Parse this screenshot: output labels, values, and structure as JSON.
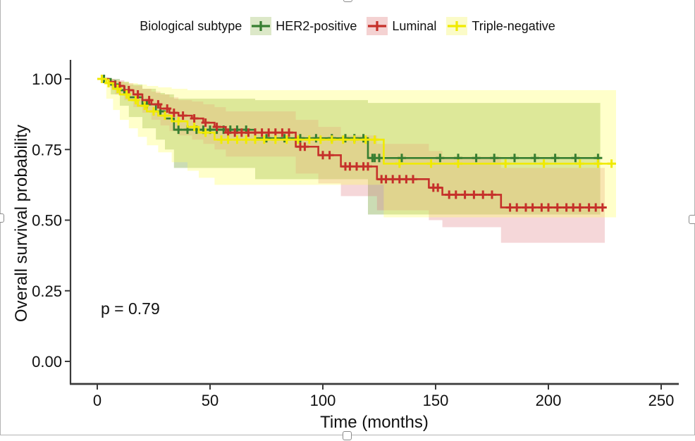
{
  "figure": {
    "p_value_label": "p = 0.79",
    "xlabel": "Time (months)",
    "ylabel": "Overall survival probability",
    "legend_title": "Biological subtype",
    "text_color": "#111111",
    "axis_color": "#3a3a3a"
  },
  "selection": {
    "border_color": "#b3b3b3",
    "handle_fill": "#ffffff",
    "handle_border": "#8a8a8a",
    "handles": [
      "top-center",
      "left-middle",
      "right-middle",
      "bottom-center"
    ]
  },
  "chart_data": {
    "type": "line",
    "subtype": "kaplan-meier-step-with-confidence-bands",
    "title": "",
    "xlabel": "Time (months)",
    "ylabel": "Overall survival probability",
    "xlim": [
      0,
      250
    ],
    "ylim": [
      0,
      1
    ],
    "x_ticks": [
      0,
      50,
      100,
      150,
      200,
      250
    ],
    "x_tick_labels": [
      "0",
      "50",
      "100",
      "150",
      "200",
      "250"
    ],
    "y_ticks": [
      0,
      0.25,
      0.5,
      0.75,
      1
    ],
    "y_tick_labels": [
      "0.00",
      "0.25",
      "0.50",
      "0.75",
      "1.00"
    ],
    "grid": false,
    "legend_position": "top",
    "legend_title": "Biological subtype",
    "annotation": "p = 0.79",
    "series": [
      {
        "name": "HER2-positive",
        "color": "#377e31",
        "band_fill": "#6a9a28",
        "band_opacity": 0.35,
        "key_bg": "#dce8c8",
        "end_time": 223,
        "steps": [
          [
            0,
            1.0
          ],
          [
            6,
            0.98
          ],
          [
            10,
            0.96
          ],
          [
            14,
            0.935
          ],
          [
            20,
            0.91
          ],
          [
            26,
            0.885
          ],
          [
            30,
            0.86
          ],
          [
            34,
            0.82
          ],
          [
            70,
            0.79
          ],
          [
            120,
            0.72
          ]
        ],
        "censor_times": [
          3,
          8,
          12,
          22,
          28,
          36,
          40,
          44,
          47,
          50,
          53,
          56,
          59,
          62,
          66,
          75,
          83,
          90,
          97,
          104,
          110,
          114,
          118,
          122,
          123,
          125,
          135,
          152,
          160,
          168,
          176,
          185,
          194,
          203,
          212,
          222
        ],
        "ci_upper": [
          [
            0,
            1.0
          ],
          [
            10,
            0.99
          ],
          [
            14,
            0.98
          ],
          [
            20,
            0.965
          ],
          [
            26,
            0.95
          ],
          [
            30,
            0.945
          ],
          [
            34,
            0.93
          ],
          [
            70,
            0.925
          ],
          [
            120,
            0.915
          ]
        ],
        "ci_lower": [
          [
            0,
            1.0
          ],
          [
            6,
            0.945
          ],
          [
            10,
            0.905
          ],
          [
            14,
            0.865
          ],
          [
            20,
            0.825
          ],
          [
            26,
            0.785
          ],
          [
            30,
            0.75
          ],
          [
            34,
            0.685
          ],
          [
            70,
            0.645
          ],
          [
            120,
            0.52
          ]
        ]
      },
      {
        "name": "Luminal",
        "color": "#c5302a",
        "band_fill": "#de7a80",
        "band_opacity": 0.3,
        "key_bg": "#f4d2d2",
        "end_time": 225,
        "steps": [
          [
            0,
            1.0
          ],
          [
            5,
            0.99
          ],
          [
            8,
            0.975
          ],
          [
            12,
            0.96
          ],
          [
            16,
            0.945
          ],
          [
            20,
            0.925
          ],
          [
            24,
            0.91
          ],
          [
            28,
            0.895
          ],
          [
            32,
            0.88
          ],
          [
            36,
            0.87
          ],
          [
            42,
            0.86
          ],
          [
            47,
            0.845
          ],
          [
            52,
            0.83
          ],
          [
            57,
            0.81
          ],
          [
            88,
            0.76
          ],
          [
            98,
            0.73
          ],
          [
            108,
            0.69
          ],
          [
            124,
            0.645
          ],
          [
            147,
            0.615
          ],
          [
            153,
            0.59
          ],
          [
            179,
            0.545
          ]
        ],
        "censor_times": [
          10,
          14,
          18,
          23,
          27,
          31,
          34,
          38,
          43,
          48,
          53,
          58,
          61,
          64,
          67,
          70,
          73,
          76,
          79,
          82,
          85,
          90,
          92,
          100,
          103,
          110,
          112,
          115,
          118,
          120,
          126,
          128,
          131,
          134,
          137,
          140,
          149,
          151,
          156,
          159,
          163,
          167,
          171,
          175,
          183,
          186,
          190,
          193,
          197,
          200,
          204,
          208,
          211,
          214,
          218,
          221,
          224
        ],
        "ci_upper": [
          [
            0,
            1.0
          ],
          [
            8,
            0.995
          ],
          [
            12,
            0.985
          ],
          [
            16,
            0.975
          ],
          [
            20,
            0.965
          ],
          [
            24,
            0.955
          ],
          [
            28,
            0.945
          ],
          [
            32,
            0.935
          ],
          [
            36,
            0.925
          ],
          [
            42,
            0.92
          ],
          [
            47,
            0.91
          ],
          [
            52,
            0.9
          ],
          [
            57,
            0.885
          ],
          [
            88,
            0.855
          ],
          [
            98,
            0.83
          ],
          [
            108,
            0.8
          ],
          [
            124,
            0.77
          ],
          [
            147,
            0.745
          ],
          [
            153,
            0.725
          ],
          [
            179,
            0.685
          ]
        ],
        "ci_lower": [
          [
            0,
            1.0
          ],
          [
            5,
            0.97
          ],
          [
            8,
            0.945
          ],
          [
            12,
            0.925
          ],
          [
            16,
            0.9
          ],
          [
            20,
            0.88
          ],
          [
            24,
            0.855
          ],
          [
            28,
            0.835
          ],
          [
            32,
            0.815
          ],
          [
            36,
            0.8
          ],
          [
            42,
            0.785
          ],
          [
            47,
            0.77
          ],
          [
            52,
            0.75
          ],
          [
            57,
            0.725
          ],
          [
            88,
            0.665
          ],
          [
            98,
            0.63
          ],
          [
            108,
            0.585
          ],
          [
            124,
            0.535
          ],
          [
            147,
            0.5
          ],
          [
            153,
            0.475
          ],
          [
            179,
            0.42
          ]
        ]
      },
      {
        "name": "Triple-negative",
        "color": "#f0ea00",
        "band_fill": "#ffff66",
        "band_opacity": 0.35,
        "key_bg": "#fbfbc8",
        "end_time": 230,
        "steps": [
          [
            0,
            1.0
          ],
          [
            4,
            0.985
          ],
          [
            7,
            0.965
          ],
          [
            10,
            0.945
          ],
          [
            14,
            0.925
          ],
          [
            18,
            0.905
          ],
          [
            22,
            0.885
          ],
          [
            27,
            0.87
          ],
          [
            33,
            0.85
          ],
          [
            40,
            0.83
          ],
          [
            45,
            0.81
          ],
          [
            52,
            0.785
          ],
          [
            127,
            0.7
          ]
        ],
        "censor_times": [
          2,
          5,
          9,
          13,
          17,
          21,
          25,
          30,
          36,
          43,
          48,
          55,
          58,
          62,
          66,
          70,
          74,
          79,
          84,
          89,
          94,
          99,
          104,
          109,
          114,
          119,
          123,
          134,
          148,
          160,
          181,
          198,
          214,
          222,
          228
        ],
        "ci_upper": [
          [
            0,
            1.0
          ],
          [
            7,
            0.995
          ],
          [
            10,
            0.99
          ],
          [
            14,
            0.985
          ],
          [
            18,
            0.98
          ],
          [
            22,
            0.975
          ],
          [
            27,
            0.97
          ],
          [
            33,
            0.965
          ],
          [
            40,
            0.96
          ]
        ],
        "ci_lower": [
          [
            0,
            1.0
          ],
          [
            4,
            0.93
          ],
          [
            7,
            0.89
          ],
          [
            10,
            0.855
          ],
          [
            14,
            0.825
          ],
          [
            18,
            0.795
          ],
          [
            22,
            0.765
          ],
          [
            27,
            0.74
          ],
          [
            33,
            0.705
          ],
          [
            40,
            0.675
          ],
          [
            45,
            0.65
          ],
          [
            52,
            0.625
          ],
          [
            127,
            0.51
          ]
        ]
      }
    ]
  }
}
